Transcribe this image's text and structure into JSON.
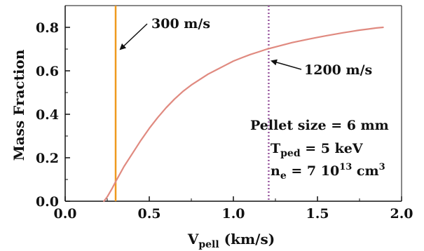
{
  "chart_data": {
    "type": "line",
    "xlabel": {
      "main": "V",
      "sub": "pell",
      "rest": " (km/s)"
    },
    "ylabel": "Mass Fraction",
    "xlim": [
      0.0,
      2.0
    ],
    "ylim": [
      0.0,
      0.9
    ],
    "x_ticks": [
      "0.0",
      "0.5",
      "1.0",
      "1.5",
      "2.0"
    ],
    "y_ticks": [
      "0.0",
      "0.2",
      "0.4",
      "0.6",
      "0.8"
    ],
    "series": [
      {
        "color": "#e08a80",
        "x": [
          0.23,
          0.25,
          0.28,
          0.3,
          0.35,
          0.4,
          0.45,
          0.5,
          0.55,
          0.6,
          0.65,
          0.7,
          0.75,
          0.8,
          0.85,
          0.9,
          0.95,
          1.0,
          1.05,
          1.1,
          1.15,
          1.2,
          1.25,
          1.3,
          1.35,
          1.4,
          1.45,
          1.5,
          1.55,
          1.6,
          1.65,
          1.7,
          1.75,
          1.8,
          1.85,
          1.89
        ],
        "y": [
          0.0,
          0.02,
          0.06,
          0.09,
          0.16,
          0.22,
          0.28,
          0.335,
          0.385,
          0.43,
          0.47,
          0.505,
          0.535,
          0.56,
          0.585,
          0.605,
          0.625,
          0.645,
          0.66,
          0.675,
          0.687,
          0.7,
          0.71,
          0.72,
          0.73,
          0.738,
          0.746,
          0.754,
          0.761,
          0.768,
          0.775,
          0.781,
          0.787,
          0.792,
          0.797,
          0.8
        ]
      }
    ],
    "vlines": [
      {
        "x": 0.3,
        "color": "#ef9a1e",
        "style": "solid",
        "label": "300 m/s"
      },
      {
        "x": 1.21,
        "color": "#9a5aa0",
        "style": "dotted",
        "label": "1200 m/s"
      }
    ],
    "annotations": {
      "pellet_size": "Pellet size = 6 mm",
      "tped": {
        "main": "T",
        "sub": "ped",
        "rest": " = 5 keV"
      },
      "ne": {
        "main": "n",
        "sub": "e",
        "rest": " = 7   10",
        "sup": "13",
        "rest2": " cm",
        "sup2": "3"
      }
    },
    "grid": false,
    "legend": "none"
  }
}
